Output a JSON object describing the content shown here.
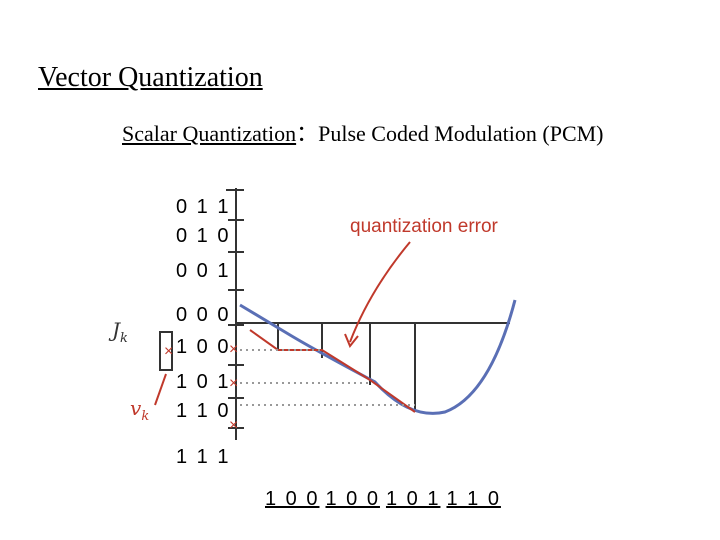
{
  "title": "Vector Quantization",
  "subtitle": {
    "term": "Scalar Quantization",
    "description": "：Pulse Coded Modulation (PCM)"
  },
  "levels": [
    "0 1 1",
    "0 1 0",
    "0 0 1",
    "0 0 0",
    "1 0 0",
    "1 0 1",
    "1 1 0",
    "1 1 1"
  ],
  "annotation": "quantization error",
  "labels": {
    "j": {
      "base": "J",
      "sub": "k"
    },
    "v": {
      "base": "v",
      "sub": "k"
    }
  },
  "output": [
    "1 0 0",
    "1 0 0",
    "1 0 1",
    "1 1 0"
  ]
}
